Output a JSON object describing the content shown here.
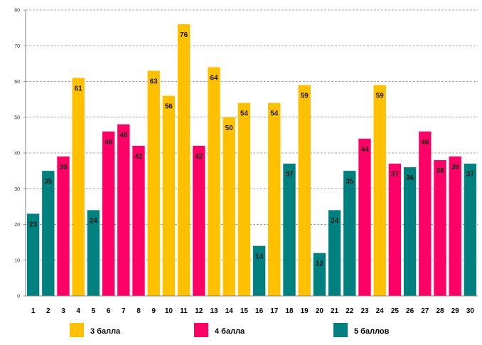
{
  "chart_data": {
    "type": "bar",
    "title": "",
    "xlabel": "",
    "ylabel": "",
    "ylim": [
      0,
      80
    ],
    "yticks": [
      0,
      10,
      20,
      30,
      40,
      50,
      60,
      70,
      80
    ],
    "grid": true,
    "legend_position": "bottom",
    "categories": [
      "1",
      "2",
      "3",
      "4",
      "5",
      "6",
      "7",
      "8",
      "9",
      "10",
      "11",
      "12",
      "13",
      "14",
      "15",
      "16",
      "17",
      "18",
      "19",
      "20",
      "21",
      "22",
      "23",
      "24",
      "25",
      "26",
      "27",
      "28",
      "29",
      "30"
    ],
    "values": [
      23,
      35,
      39,
      61,
      24,
      46,
      48,
      42,
      63,
      56,
      76,
      42,
      64,
      50,
      54,
      14,
      54,
      37,
      59,
      12,
      24,
      35,
      44,
      59,
      37,
      36,
      46,
      38,
      39,
      37
    ],
    "bar_series": [
      5,
      5,
      4,
      3,
      5,
      4,
      4,
      4,
      3,
      3,
      3,
      4,
      3,
      3,
      3,
      5,
      3,
      5,
      3,
      5,
      5,
      5,
      4,
      3,
      4,
      5,
      4,
      4,
      4,
      5
    ],
    "legend": [
      {
        "key": 3,
        "label": "3 балла",
        "color": "#FFC000"
      },
      {
        "key": 4,
        "label": "4 балла",
        "color": "#FF0066"
      },
      {
        "key": 5,
        "label": "5 баллов",
        "color": "#00807F"
      }
    ]
  }
}
